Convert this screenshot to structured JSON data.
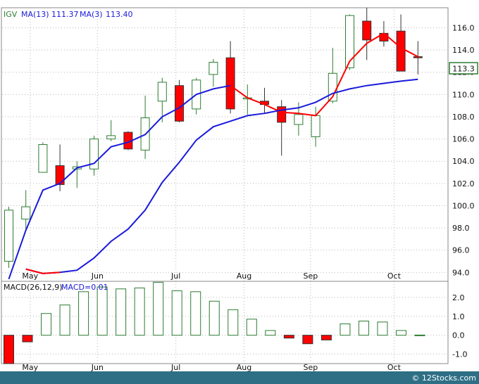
{
  "watermark": "© 12Stocks.com",
  "colors": {
    "up": "#2e7d32",
    "down": "#ff0000",
    "ma_fast": "#ff0000",
    "ma_slow": "#1a1adb",
    "macd": "#2e7d32",
    "footer": "#2e6f86"
  },
  "chart_data": [
    {
      "type": "candlestick",
      "legend": {
        "symbol": "IGV",
        "ma13_label": "MA(13)",
        "ma13_value": "111.37",
        "ma3_label": "MA(3)",
        "ma3_value": "113.40"
      },
      "last_price_label": "113.3",
      "last_price": 113.3,
      "ylim": [
        93.2,
        117.8
      ],
      "yticks": [
        94,
        96,
        98,
        100,
        102,
        104,
        106,
        108,
        110,
        112,
        114,
        116
      ],
      "ytick_labels": [
        "94.0",
        "96.0",
        "98.0",
        "100.0",
        "102.0",
        "104.0",
        "106.0",
        "108.0",
        "110.0",
        "112.0",
        "114.0",
        "116.0"
      ],
      "months": [
        "May",
        "Jun",
        "Jul",
        "Aug",
        "Sep",
        "Oct"
      ],
      "month_week_index": [
        1.25,
        5.2,
        9.8,
        13.8,
        17.7,
        22.6
      ],
      "candles": [
        {
          "o": 95.0,
          "h": 99.9,
          "l": 94.4,
          "c": 99.6
        },
        {
          "o": 98.8,
          "h": 101.4,
          "l": 97.9,
          "c": 99.9
        },
        {
          "o": 103.0,
          "h": 105.7,
          "l": 103.0,
          "c": 105.5
        },
        {
          "o": 103.6,
          "h": 105.5,
          "l": 101.3,
          "c": 101.9
        },
        {
          "o": 103.3,
          "h": 104.0,
          "l": 101.6,
          "c": 103.5
        },
        {
          "o": 103.3,
          "h": 106.3,
          "l": 102.7,
          "c": 106.0
        },
        {
          "o": 106.0,
          "h": 107.7,
          "l": 105.8,
          "c": 106.3
        },
        {
          "o": 106.6,
          "h": 106.7,
          "l": 105.0,
          "c": 105.1
        },
        {
          "o": 105.0,
          "h": 109.9,
          "l": 104.2,
          "c": 107.9
        },
        {
          "o": 109.4,
          "h": 111.5,
          "l": 107.5,
          "c": 111.1
        },
        {
          "o": 110.8,
          "h": 111.3,
          "l": 107.5,
          "c": 107.6
        },
        {
          "o": 108.7,
          "h": 111.5,
          "l": 108.2,
          "c": 111.3
        },
        {
          "o": 111.8,
          "h": 113.2,
          "l": 110.7,
          "c": 112.9
        },
        {
          "o": 113.3,
          "h": 114.8,
          "l": 108.3,
          "c": 108.7
        },
        {
          "o": 109.6,
          "h": 110.9,
          "l": 108.2,
          "c": 109.7
        },
        {
          "o": 109.4,
          "h": 110.6,
          "l": 108.3,
          "c": 109.1
        },
        {
          "o": 108.9,
          "h": 109.5,
          "l": 104.5,
          "c": 107.5
        },
        {
          "o": 107.3,
          "h": 109.3,
          "l": 106.3,
          "c": 108.2
        },
        {
          "o": 106.2,
          "h": 108.9,
          "l": 105.3,
          "c": 108.1
        },
        {
          "o": 109.4,
          "h": 114.2,
          "l": 109.2,
          "c": 111.9
        },
        {
          "o": 112.4,
          "h": 117.2,
          "l": 112.2,
          "c": 117.1
        },
        {
          "o": 116.6,
          "h": 117.8,
          "l": 113.1,
          "c": 114.9
        },
        {
          "o": 115.5,
          "h": 116.6,
          "l": 114.3,
          "c": 114.8
        },
        {
          "o": 115.7,
          "h": 117.2,
          "l": 112.1,
          "c": 112.1
        },
        {
          "o": 113.4,
          "h": 114.8,
          "l": 111.8,
          "c": 113.3
        }
      ],
      "ma13": [
        null,
        null,
        null,
        null,
        null,
        null,
        null,
        null,
        null,
        null,
        null,
        null,
        null,
        null,
        null,
        null,
        null,
        null,
        null,
        null,
        null,
        null,
        null,
        null,
        null
      ],
      "ma13_series": [
        [
          0,
          93.4
        ],
        [
          1,
          97.8
        ],
        [
          2,
          101.4
        ],
        [
          3,
          102.0
        ],
        [
          4,
          103.4
        ],
        [
          5,
          103.8
        ],
        [
          6,
          105.3
        ],
        [
          7,
          105.7
        ],
        [
          8,
          106.4
        ],
        [
          9,
          108.0
        ],
        [
          10,
          108.8
        ],
        [
          11,
          110.0
        ],
        [
          12,
          110.5
        ],
        [
          13,
          110.8
        ]
      ],
      "ma13_tail_series": [
        [
          13,
          110.8
        ],
        [
          14,
          109.7
        ],
        [
          15,
          109.1
        ],
        [
          16,
          108.4
        ],
        [
          17,
          108.3
        ],
        [
          18,
          108.1
        ],
        [
          19,
          109.8
        ],
        [
          20,
          113.0
        ],
        [
          21,
          114.6
        ],
        [
          22,
          115.5
        ],
        [
          23,
          114.2
        ],
        [
          24,
          113.4
        ]
      ],
      "ma3_series": [
        [
          1,
          94.3
        ],
        [
          2,
          93.9
        ],
        [
          3,
          94.0
        ],
        [
          4,
          94.2
        ],
        [
          5,
          95.3
        ],
        [
          6,
          96.8
        ],
        [
          7,
          97.9
        ],
        [
          8,
          99.6
        ],
        [
          9,
          102.1
        ],
        [
          10,
          103.9
        ],
        [
          11,
          105.9
        ],
        [
          12,
          107.1
        ],
        [
          13,
          107.6
        ],
        [
          14,
          108.1
        ],
        [
          15,
          108.3
        ],
        [
          16,
          108.6
        ],
        [
          17,
          108.8
        ],
        [
          18,
          109.3
        ],
        [
          19,
          110.1
        ],
        [
          20,
          110.5
        ],
        [
          21,
          110.8
        ],
        [
          22,
          111.0
        ],
        [
          23,
          111.2
        ],
        [
          24,
          111.37
        ]
      ]
    },
    {
      "type": "bar",
      "legend": {
        "macd_params": "MACD(26,12,9)",
        "macd_label": "MACD=0.01"
      },
      "ylim": [
        -1.5,
        2.85
      ],
      "yticks": [
        -1.0,
        0.0,
        1.0,
        2.0
      ],
      "ytick_labels": [
        "-1.0",
        "0.0",
        "1.0",
        "2.0"
      ],
      "values": [
        -1.5,
        -0.35,
        1.15,
        1.6,
        2.3,
        2.55,
        2.45,
        2.5,
        2.8,
        2.35,
        2.3,
        1.8,
        1.35,
        0.85,
        0.25,
        -0.15,
        -0.45,
        -0.25,
        0.6,
        0.75,
        0.7,
        0.25,
        0.01
      ]
    }
  ]
}
